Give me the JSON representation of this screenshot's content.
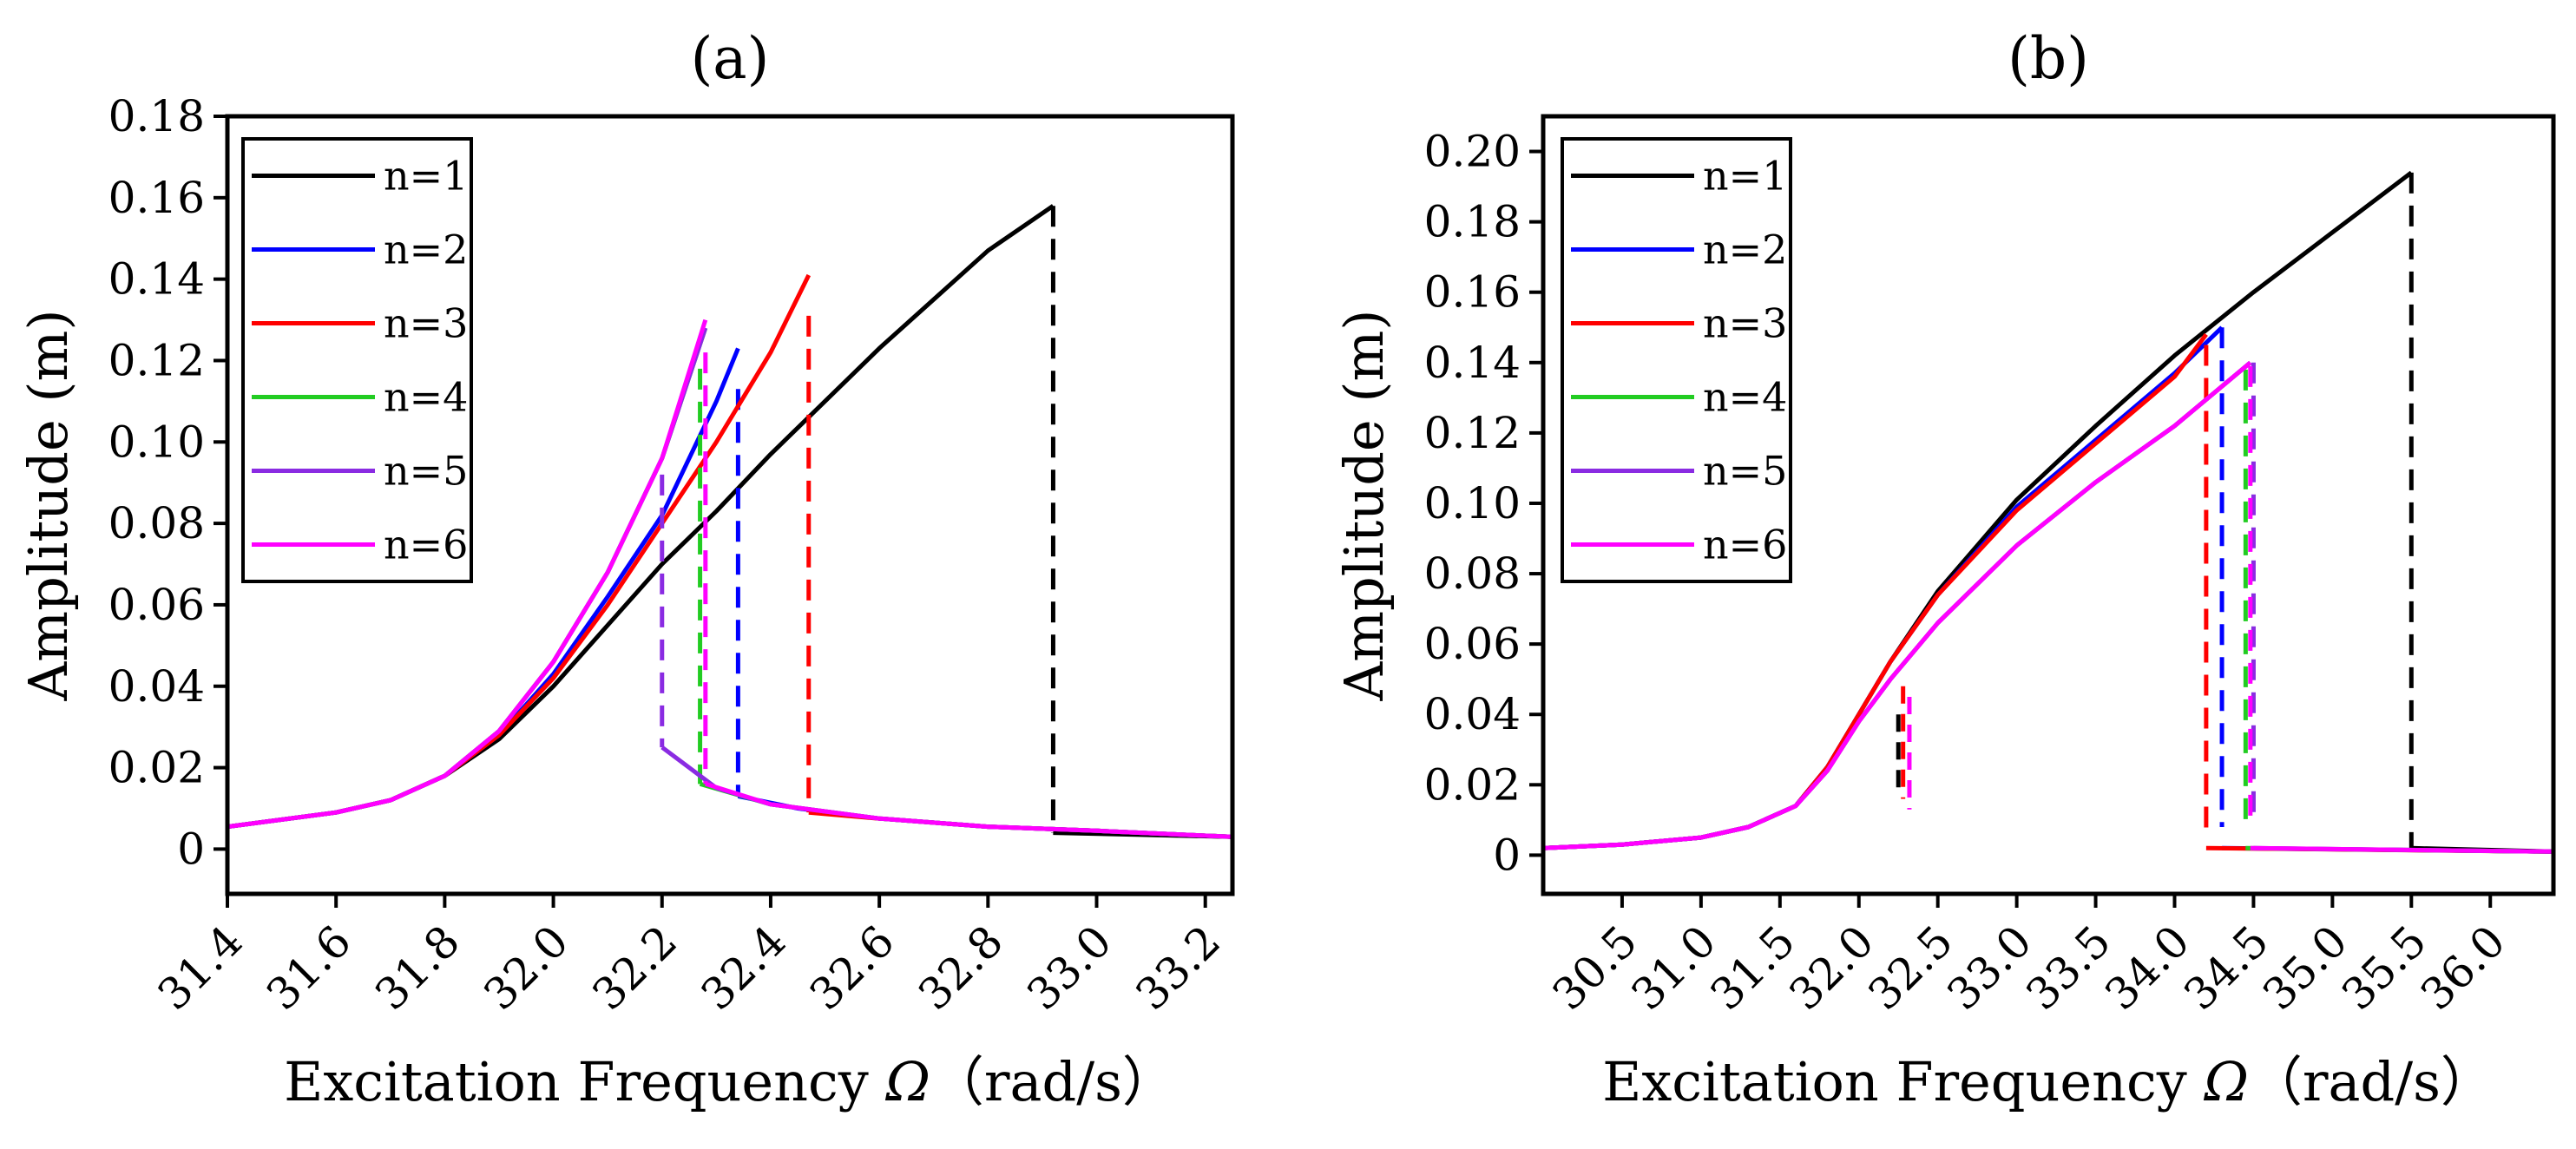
{
  "figure": {
    "xlabel_text": "Excitation Frequency ",
    "xlabel_symbol": "Ω",
    "xlabel_unit": "（rad/s）",
    "ylabel": "Amplitude (m)"
  },
  "chart_data": [
    {
      "type": "line",
      "title": "(a)",
      "xlabel": "Excitation Frequency Ω（rad/s）",
      "ylabel": "Amplitude (m)",
      "xlim": [
        31.4,
        33.25
      ],
      "ylim": [
        -0.011,
        0.18
      ],
      "x_tick_values": [
        31.4,
        31.6,
        31.8,
        32.0,
        32.2,
        32.4,
        32.6,
        32.8,
        33.0,
        33.2
      ],
      "x_ticks": [
        "31.4",
        "31.6",
        "31.8",
        "32.0",
        "32.2",
        "32.4",
        "32.6",
        "32.8",
        "33.0",
        "33.2"
      ],
      "y_tick_values": [
        0,
        0.02,
        0.04,
        0.06,
        0.08,
        0.1,
        0.12,
        0.14,
        0.16,
        0.18
      ],
      "y_ticks": [
        "0",
        "0.02",
        "0.04",
        "0.06",
        "0.08",
        "0.10",
        "0.12",
        "0.14",
        "0.16",
        "0.18"
      ],
      "legend_position": "top-left",
      "series": [
        {
          "name": "n=1",
          "color": "#000000",
          "upper": [
            [
              31.4,
              0.0055
            ],
            [
              31.6,
              0.009
            ],
            [
              31.7,
              0.012
            ],
            [
              31.8,
              0.018
            ],
            [
              31.9,
              0.027
            ],
            [
              32.0,
              0.04
            ],
            [
              32.1,
              0.055
            ],
            [
              32.2,
              0.07
            ],
            [
              32.3,
              0.083
            ],
            [
              32.4,
              0.097
            ],
            [
              32.5,
              0.11
            ],
            [
              32.6,
              0.123
            ],
            [
              32.7,
              0.135
            ],
            [
              32.8,
              0.147
            ],
            [
              32.92,
              0.158
            ]
          ],
          "jump_x": 32.92,
          "jump_top": 0.158,
          "jump_bottom": 0.004,
          "lower": [
            [
              32.92,
              0.004
            ],
            [
              33.25,
              0.003
            ]
          ]
        },
        {
          "name": "n=2",
          "color": "#0000ff",
          "upper": [
            [
              31.4,
              0.0055
            ],
            [
              31.6,
              0.009
            ],
            [
              31.7,
              0.012
            ],
            [
              31.8,
              0.018
            ],
            [
              31.9,
              0.028
            ],
            [
              32.0,
              0.043
            ],
            [
              32.1,
              0.062
            ],
            [
              32.2,
              0.082
            ],
            [
              32.3,
              0.11
            ],
            [
              32.34,
              0.123
            ]
          ],
          "jump_x": 32.34,
          "jump_top": 0.113,
          "jump_bottom": 0.013,
          "lower": [
            [
              32.34,
              0.013
            ],
            [
              32.45,
              0.01
            ],
            [
              32.6,
              0.0075
            ],
            [
              32.8,
              0.0055
            ],
            [
              33.0,
              0.0045
            ],
            [
              33.25,
              0.003
            ]
          ]
        },
        {
          "name": "n=3",
          "color": "#ff0000",
          "upper": [
            [
              31.4,
              0.0055
            ],
            [
              31.6,
              0.009
            ],
            [
              31.7,
              0.012
            ],
            [
              31.8,
              0.018
            ],
            [
              31.9,
              0.028
            ],
            [
              32.0,
              0.042
            ],
            [
              32.1,
              0.06
            ],
            [
              32.2,
              0.08
            ],
            [
              32.3,
              0.1
            ],
            [
              32.4,
              0.122
            ],
            [
              32.47,
              0.141
            ]
          ],
          "jump_x": 32.47,
          "jump_top": 0.131,
          "jump_bottom": 0.009,
          "lower": [
            [
              32.47,
              0.009
            ],
            [
              32.6,
              0.0075
            ],
            [
              32.8,
              0.0055
            ],
            [
              33.0,
              0.0045
            ],
            [
              33.25,
              0.003
            ]
          ]
        },
        {
          "name": "n=4",
          "color": "#22cc22",
          "upper": [
            [
              31.4,
              0.0055
            ],
            [
              31.6,
              0.009
            ],
            [
              31.7,
              0.012
            ],
            [
              31.8,
              0.018
            ],
            [
              31.9,
              0.029
            ],
            [
              32.0,
              0.046
            ],
            [
              32.1,
              0.068
            ],
            [
              32.2,
              0.096
            ],
            [
              32.28,
              0.128
            ]
          ],
          "jump_x": 32.27,
          "jump_top": 0.118,
          "jump_bottom": 0.016,
          "lower": [
            [
              32.27,
              0.016
            ],
            [
              32.4,
              0.011
            ],
            [
              32.6,
              0.0075
            ],
            [
              32.8,
              0.0055
            ],
            [
              33.0,
              0.0045
            ],
            [
              33.25,
              0.003
            ]
          ]
        },
        {
          "name": "n=5",
          "color": "#8a2be2",
          "upper": [
            [
              31.4,
              0.0055
            ],
            [
              31.6,
              0.009
            ],
            [
              31.7,
              0.012
            ],
            [
              31.8,
              0.018
            ],
            [
              31.9,
              0.029
            ],
            [
              32.0,
              0.046
            ],
            [
              32.1,
              0.068
            ],
            [
              32.2,
              0.096
            ],
            [
              32.28,
              0.128
            ]
          ],
          "jump_x": 32.2,
          "jump_top": 0.092,
          "jump_bottom": 0.025,
          "lower": [
            [
              32.2,
              0.025
            ],
            [
              32.3,
              0.015
            ],
            [
              32.4,
              0.011
            ],
            [
              32.6,
              0.0075
            ],
            [
              32.8,
              0.0055
            ],
            [
              33.0,
              0.0045
            ],
            [
              33.25,
              0.003
            ]
          ]
        },
        {
          "name": "n=6",
          "color": "#ff00ff",
          "upper": [
            [
              31.4,
              0.0055
            ],
            [
              31.6,
              0.009
            ],
            [
              31.7,
              0.012
            ],
            [
              31.8,
              0.018
            ],
            [
              31.9,
              0.029
            ],
            [
              32.0,
              0.046
            ],
            [
              32.1,
              0.068
            ],
            [
              32.2,
              0.096
            ],
            [
              32.28,
              0.13
            ]
          ],
          "jump_x": 32.28,
          "jump_top": 0.122,
          "jump_bottom": 0.016,
          "lower": [
            [
              32.28,
              0.016
            ],
            [
              32.4,
              0.011
            ],
            [
              32.6,
              0.0075
            ],
            [
              32.8,
              0.0055
            ],
            [
              33.0,
              0.0045
            ],
            [
              33.25,
              0.003
            ]
          ]
        }
      ]
    },
    {
      "type": "line",
      "title": "(b)",
      "xlabel": "Excitation Frequency Ω（rad/s）",
      "ylabel": "Amplitude (m)",
      "xlim": [
        30.0,
        36.4
      ],
      "ylim": [
        -0.011,
        0.21
      ],
      "x_tick_values": [
        30.5,
        31.0,
        31.5,
        32.0,
        32.5,
        33.0,
        33.5,
        34.0,
        34.5,
        35.0,
        35.5,
        36.0
      ],
      "x_ticks": [
        "30.5",
        "31.0",
        "31.5",
        "32.0",
        "32.5",
        "33.0",
        "33.5",
        "34.0",
        "34.5",
        "35.0",
        "35.5",
        "36.0"
      ],
      "y_tick_values": [
        0,
        0.02,
        0.04,
        0.06,
        0.08,
        0.1,
        0.12,
        0.14,
        0.16,
        0.18,
        0.2
      ],
      "y_ticks": [
        "0",
        "0.02",
        "0.04",
        "0.06",
        "0.08",
        "0.10",
        "0.12",
        "0.14",
        "0.16",
        "0.18",
        "0.20"
      ],
      "legend_position": "top-left",
      "series": [
        {
          "name": "n=1",
          "color": "#000000",
          "upper": [
            [
              30.0,
              0.002
            ],
            [
              30.5,
              0.003
            ],
            [
              31.0,
              0.005
            ],
            [
              31.3,
              0.008
            ],
            [
              31.6,
              0.014
            ],
            [
              31.8,
              0.025
            ],
            [
              32.0,
              0.04
            ],
            [
              32.2,
              0.055
            ],
            [
              32.5,
              0.075
            ],
            [
              33.0,
              0.101
            ],
            [
              33.5,
              0.122
            ],
            [
              34.0,
              0.142
            ],
            [
              34.5,
              0.16
            ],
            [
              35.0,
              0.177
            ],
            [
              35.5,
              0.194
            ]
          ],
          "jump_x": 35.5,
          "jump_top": 0.194,
          "jump_bottom": 0.002,
          "lower": [
            [
              35.5,
              0.002
            ],
            [
              36.4,
              0.001
            ]
          ]
        },
        {
          "name": "n=2",
          "color": "#0000ff",
          "upper": [
            [
              30.0,
              0.002
            ],
            [
              30.5,
              0.003
            ],
            [
              31.0,
              0.005
            ],
            [
              31.3,
              0.008
            ],
            [
              31.6,
              0.014
            ],
            [
              31.8,
              0.025
            ],
            [
              32.0,
              0.04
            ],
            [
              32.2,
              0.055
            ],
            [
              32.5,
              0.074
            ],
            [
              33.0,
              0.099
            ],
            [
              33.5,
              0.118
            ],
            [
              34.0,
              0.137
            ],
            [
              34.3,
              0.15
            ]
          ],
          "jump_x": 34.3,
          "jump_top": 0.15,
          "jump_bottom": 0.008,
          "lower": [
            [
              34.3,
              0.002
            ],
            [
              36.4,
              0.001
            ]
          ]
        },
        {
          "name": "n=3",
          "color": "#ff0000",
          "upper": [
            [
              30.0,
              0.002
            ],
            [
              30.5,
              0.003
            ],
            [
              31.0,
              0.005
            ],
            [
              31.3,
              0.008
            ],
            [
              31.6,
              0.014
            ],
            [
              31.8,
              0.025
            ],
            [
              32.0,
              0.04
            ],
            [
              32.2,
              0.055
            ],
            [
              32.5,
              0.074
            ],
            [
              33.0,
              0.098
            ],
            [
              33.5,
              0.117
            ],
            [
              34.0,
              0.136
            ],
            [
              34.2,
              0.148
            ]
          ],
          "jump_x": 34.2,
          "jump_top": 0.145,
          "jump_bottom": 0.006,
          "lower": [
            [
              34.2,
              0.002
            ],
            [
              36.4,
              0.001
            ]
          ]
        },
        {
          "name": "n=4",
          "color": "#22cc22",
          "upper": [
            [
              30.0,
              0.002
            ],
            [
              30.5,
              0.003
            ],
            [
              31.0,
              0.005
            ],
            [
              31.3,
              0.008
            ],
            [
              31.6,
              0.014
            ],
            [
              31.8,
              0.024
            ],
            [
              32.0,
              0.038
            ],
            [
              32.2,
              0.05
            ],
            [
              32.5,
              0.066
            ],
            [
              33.0,
              0.088
            ],
            [
              33.5,
              0.106
            ],
            [
              34.0,
              0.122
            ],
            [
              34.48,
              0.14
            ]
          ],
          "jump_x": 34.45,
          "jump_top": 0.138,
          "jump_bottom": 0.01,
          "lower": [
            [
              34.45,
              0.002
            ],
            [
              36.4,
              0.001
            ]
          ]
        },
        {
          "name": "n=5",
          "color": "#8a2be2",
          "upper": [
            [
              30.0,
              0.002
            ],
            [
              30.5,
              0.003
            ],
            [
              31.0,
              0.005
            ],
            [
              31.3,
              0.008
            ],
            [
              31.6,
              0.014
            ],
            [
              31.8,
              0.024
            ],
            [
              32.0,
              0.038
            ],
            [
              32.2,
              0.05
            ],
            [
              32.5,
              0.066
            ],
            [
              33.0,
              0.088
            ],
            [
              33.5,
              0.106
            ],
            [
              34.0,
              0.122
            ],
            [
              34.48,
              0.14
            ]
          ],
          "jump_x": 34.5,
          "jump_top": 0.14,
          "jump_bottom": 0.01,
          "lower": [
            [
              34.5,
              0.002
            ],
            [
              36.4,
              0.001
            ]
          ]
        },
        {
          "name": "n=6",
          "color": "#ff00ff",
          "upper": [
            [
              30.0,
              0.002
            ],
            [
              30.5,
              0.003
            ],
            [
              31.0,
              0.005
            ],
            [
              31.3,
              0.008
            ],
            [
              31.6,
              0.014
            ],
            [
              31.8,
              0.024
            ],
            [
              32.0,
              0.038
            ],
            [
              32.2,
              0.05
            ],
            [
              32.5,
              0.066
            ],
            [
              33.0,
              0.088
            ],
            [
              33.5,
              0.106
            ],
            [
              34.0,
              0.122
            ],
            [
              34.48,
              0.14
            ]
          ],
          "jump_x": 34.48,
          "jump_top": 0.139,
          "jump_bottom": 0.01,
          "lower": [
            [
              34.48,
              0.002
            ],
            [
              36.4,
              0.001
            ]
          ]
        }
      ],
      "lower_left_jumps": [
        {
          "color": "#000000",
          "x": 32.25,
          "top": 0.04,
          "bottom": 0.018
        },
        {
          "color": "#ff0000",
          "x": 32.28,
          "top": 0.048,
          "bottom": 0.016
        },
        {
          "color": "#ff00ff",
          "x": 32.32,
          "top": 0.045,
          "bottom": 0.013
        }
      ]
    }
  ]
}
